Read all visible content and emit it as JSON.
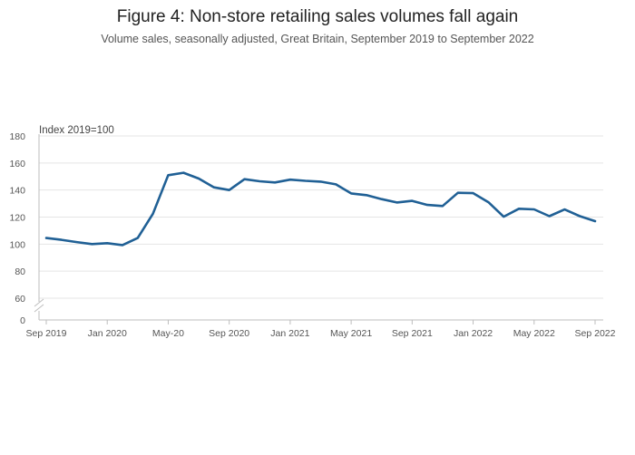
{
  "chart_data": {
    "type": "line",
    "title": "Figure 4: Non-store retailing sales volumes fall again",
    "subtitle": "Volume sales, seasonally adjusted, Great Britain, September 2019 to September 2022",
    "ylabel": "Index 2019=100",
    "ylim": [
      0,
      180
    ],
    "y_axis_break": [
      0,
      60
    ],
    "y_ticks": [
      0,
      60,
      80,
      100,
      120,
      140,
      160,
      180
    ],
    "x_ticks": [
      {
        "index": 0,
        "label": "Sep 2019"
      },
      {
        "index": 4,
        "label": "Jan 2020"
      },
      {
        "index": 8,
        "label": "May-20"
      },
      {
        "index": 12,
        "label": "Sep 2020"
      },
      {
        "index": 16,
        "label": "Jan 2021"
      },
      {
        "index": 20,
        "label": "May 2021"
      },
      {
        "index": 24,
        "label": "Sep 2021"
      },
      {
        "index": 28,
        "label": "Jan 2022"
      },
      {
        "index": 32,
        "label": "May 2022"
      },
      {
        "index": 36,
        "label": "Sep 2022"
      }
    ],
    "grid": true,
    "series": [
      {
        "name": "",
        "color": "#206095",
        "values": [
          104.5,
          103.2,
          101.5,
          100.0,
          100.7,
          99.3,
          104.5,
          122.5,
          151.0,
          152.8,
          148.5,
          142.0,
          140.0,
          148.0,
          146.5,
          145.6,
          147.7,
          146.8,
          146.2,
          144.2,
          137.5,
          136.2,
          133.3,
          130.8,
          132.0,
          129.0,
          128.2,
          138.0,
          137.7,
          131.0,
          120.3,
          126.2,
          125.7,
          120.7,
          125.6,
          120.7,
          117.0
        ]
      }
    ]
  }
}
